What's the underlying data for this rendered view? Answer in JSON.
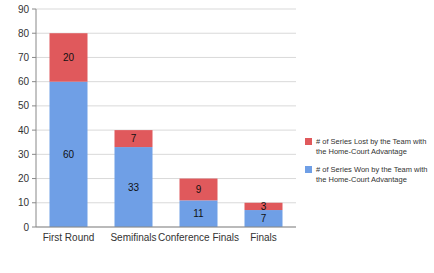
{
  "chart_data": {
    "type": "bar",
    "stacked": true,
    "data_labels": true,
    "grid": true,
    "legend": "right",
    "categories": [
      "First Round",
      "Semifinals",
      "Conference Finals",
      "Finals"
    ],
    "series": [
      {
        "name": "# of Series Won by the Team with the Home-Court Advantage",
        "color": "#6f9fe6",
        "values": [
          60,
          33,
          11,
          7
        ]
      },
      {
        "name": "# of Series Lost by the Team with the Home-Court Advantage",
        "color": "#e0595c",
        "values": [
          20,
          7,
          9,
          3
        ]
      }
    ],
    "ylim": [
      0,
      90
    ],
    "yticks": [
      0,
      10,
      20,
      30,
      40,
      50,
      60,
      70,
      80,
      90
    ]
  }
}
